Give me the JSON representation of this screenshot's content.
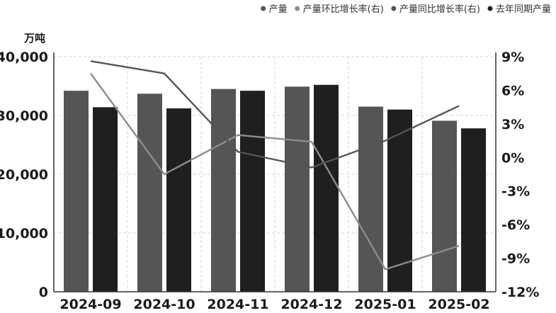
{
  "chart_data": {
    "type": "bar",
    "categories": [
      "2024-09",
      "2024-10",
      "2024-11",
      "2024-12",
      "2025-01",
      "2025-02"
    ],
    "ylabel": "万吨",
    "ylim": [
      0,
      40000
    ],
    "yticks": [
      "0",
      "10,000",
      "20,000",
      "30,000",
      "40,000"
    ],
    "y2lim": [
      -12,
      9
    ],
    "y2ticks": [
      "-12%",
      "-9%",
      "-6%",
      "-3%",
      "0%",
      "3%",
      "6%",
      "9%"
    ],
    "grid": true,
    "legend_position": "top-right",
    "series": [
      {
        "name": "产量",
        "kind": "bar",
        "axis": "left",
        "color": "#555555",
        "values": [
          34200,
          33700,
          34500,
          34900,
          31500,
          29100
        ]
      },
      {
        "name": "产量环比增长率(右)",
        "kind": "line",
        "axis": "right",
        "color": "#8c8c8c",
        "values": [
          7.5,
          -1.5,
          2.0,
          1.4,
          -10.0,
          -7.9
        ]
      },
      {
        "name": "产量同比增长率(右)",
        "kind": "line",
        "axis": "right",
        "color": "#555555",
        "values": [
          8.6,
          7.5,
          0.5,
          -0.9,
          1.5,
          4.6
        ]
      },
      {
        "name": "去年同期产量",
        "kind": "bar",
        "axis": "left",
        "color": "#1f1f1f",
        "values": [
          31400,
          31200,
          34200,
          35200,
          31000,
          27800
        ]
      }
    ]
  }
}
